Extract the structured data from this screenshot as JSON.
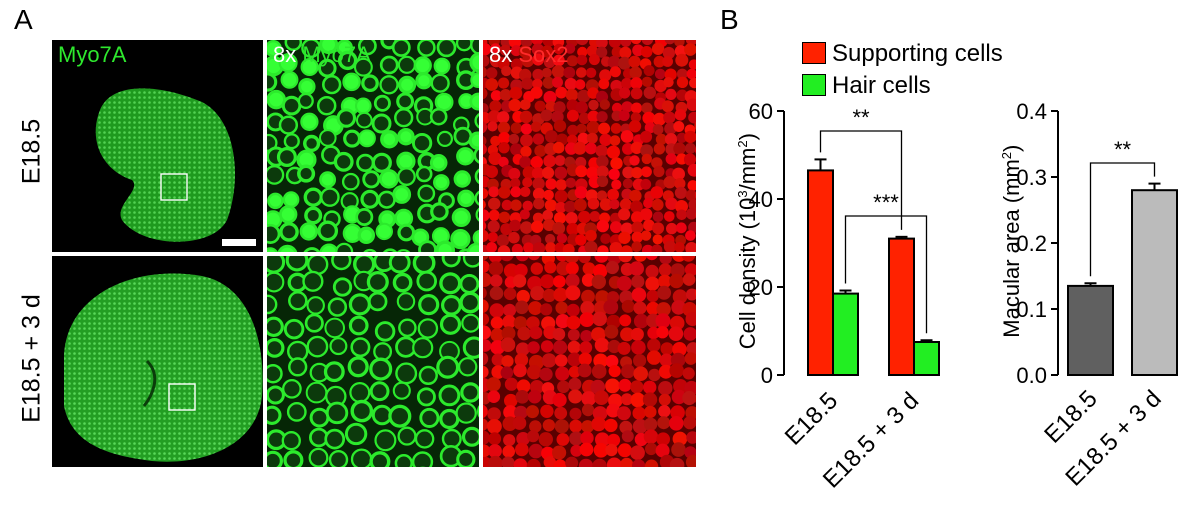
{
  "panel_a": {
    "letter": "A",
    "rows": [
      {
        "label": "E18.5"
      },
      {
        "label": "E18.5 + 3 d"
      }
    ],
    "columns": [
      {
        "prefix": "",
        "marker": "Myo7A",
        "marker_color": "#2ee82e"
      },
      {
        "prefix": "8x ",
        "marker": "Myo7A",
        "marker_color": "#2ee82e"
      },
      {
        "prefix": "8x ",
        "marker": "Sox2",
        "marker_color": "#ff2a2a"
      }
    ]
  },
  "panel_b": {
    "letter": "B",
    "legend": [
      {
        "label": "Supporting cells",
        "color": "#ff2200"
      },
      {
        "label": "Hair cells",
        "color": "#22ee22"
      }
    ]
  },
  "chart_data": [
    {
      "type": "bar",
      "ylabel": "Cell density (10³/mm²)",
      "ylabel_parts": {
        "pre": "Cell density (10",
        "sup1": "3",
        "mid": "/mm",
        "sup2": "2",
        "post": ")"
      },
      "categories": [
        "E18.5",
        "E18.5 + 3 d"
      ],
      "ylim": [
        0,
        60
      ],
      "yticks": [
        0,
        20,
        40,
        60
      ],
      "series": [
        {
          "name": "Supporting cells",
          "color": "#ff2200",
          "values": [
            46.5,
            31.0
          ],
          "errors": [
            2.5,
            0.4
          ]
        },
        {
          "name": "Hair cells",
          "color": "#22ee22",
          "values": [
            18.5,
            7.5
          ],
          "errors": [
            0.7,
            0.4
          ]
        }
      ],
      "significance": [
        {
          "label": "**",
          "between": "supporting cells E18.5 vs E18.5 + 3 d"
        },
        {
          "label": "***",
          "between": "hair cells E18.5 vs E18.5 + 3 d"
        }
      ]
    },
    {
      "type": "bar",
      "ylabel": "Macular area (mm²)",
      "ylabel_parts": {
        "pre": "Macular area (mm",
        "sup": "2",
        "post": ")"
      },
      "categories": [
        "E18.5",
        "E18.5 + 3 d"
      ],
      "ylim": [
        0,
        0.4
      ],
      "yticks": [
        "0.0",
        "0.1",
        "0.2",
        "0.3",
        "0.4"
      ],
      "values": [
        0.135,
        0.28
      ],
      "errors": [
        0.004,
        0.01
      ],
      "colors": [
        "#606060",
        "#bbbbbb"
      ],
      "significance": [
        {
          "label": "**",
          "between": "E18.5 vs E18.5 + 3 d"
        }
      ]
    }
  ]
}
